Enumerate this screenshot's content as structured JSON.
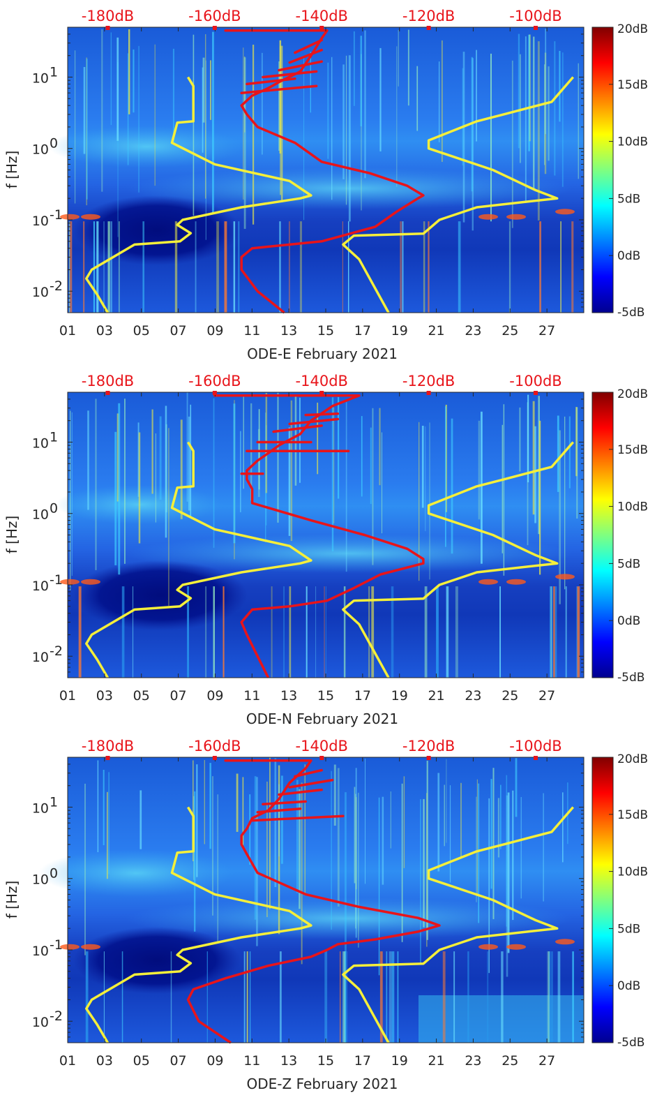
{
  "colors": {
    "background_low": "#0a1d8f",
    "background_mid": "#1f5fe0",
    "background_hi": "#35c8f0",
    "curve_red": "#e8141a",
    "curve_yellow": "#f5ef3a",
    "db_label": "#e8141a"
  },
  "chart_data": [
    {
      "type": "heatmap",
      "title": "",
      "xlabel": "ODE-E February 2021",
      "ylabel": "f [Hz]",
      "x_tick_labels": [
        "01",
        "03",
        "05",
        "07",
        "09",
        "11",
        "13",
        "15",
        "17",
        "19",
        "21",
        "23",
        "25",
        "27"
      ],
      "xlim": [
        1,
        29
      ],
      "ylim": [
        0.005,
        50
      ],
      "yscale": "log",
      "y_ticks": [
        {
          "value": 0.01,
          "base": "10",
          "exp": "-2"
        },
        {
          "value": 0.1,
          "base": "10",
          "exp": "-1"
        },
        {
          "value": 1,
          "base": "10",
          "exp": "0"
        },
        {
          "value": 10,
          "base": "10",
          "exp": "1"
        }
      ],
      "top_axis_labels": [
        "-180dB",
        "-160dB",
        "-140dB",
        "-120dB",
        "-100dB"
      ],
      "top_axis_values": [
        -180,
        -160,
        -140,
        -120,
        -100
      ],
      "top_axis_range": [
        -187.5,
        -91
      ],
      "colorbar": {
        "labels": [
          "20dB",
          "15dB",
          "10dB",
          "5dB",
          "0dB",
          "-5dB"
        ],
        "values": [
          20,
          15,
          10,
          5,
          0,
          -5
        ],
        "range": [
          -5,
          20
        ],
        "colormap": "jet"
      },
      "series": [
        {
          "name": "yellow-model-low",
          "color": "yellow",
          "points": [
            [
              -180,
              0.005
            ],
            [
              -182,
              0.009
            ],
            [
              -184,
              0.015
            ],
            [
              -183,
              0.02
            ],
            [
              -175,
              0.045
            ],
            [
              -166.5,
              0.05
            ],
            [
              -164.5,
              0.065
            ],
            [
              -167,
              0.085
            ],
            [
              -166,
              0.1
            ],
            [
              -155,
              0.15
            ],
            [
              -144,
              0.2
            ],
            [
              -142,
              0.22
            ],
            [
              -146,
              0.35
            ],
            [
              -160,
              0.6
            ],
            [
              -168,
              1.2
            ],
            [
              -167,
              2.3
            ],
            [
              -164,
              2.4
            ],
            [
              -164,
              7.5
            ],
            [
              -165,
              10
            ]
          ]
        },
        {
          "name": "yellow-model-high",
          "color": "yellow",
          "points": [
            [
              -127.5,
              0.005
            ],
            [
              -133,
              0.028
            ],
            [
              -136,
              0.045
            ],
            [
              -134,
              0.06
            ],
            [
              -121,
              0.064
            ],
            [
              -118,
              0.1
            ],
            [
              -111,
              0.15
            ],
            [
              -96,
              0.2
            ],
            [
              -100,
              0.26
            ],
            [
              -108,
              0.5
            ],
            [
              -120,
              1.0
            ],
            [
              -120,
              1.3
            ],
            [
              -111,
              2.4
            ],
            [
              -106,
              3.0
            ],
            [
              -97,
              4.5
            ],
            [
              -93,
              10
            ]
          ]
        }
      ],
      "red_main": [
        [
          -147,
          0.005
        ],
        [
          -152,
          0.01
        ],
        [
          -155,
          0.02
        ],
        [
          -155,
          0.03
        ],
        [
          -153,
          0.04
        ],
        [
          -146,
          0.045
        ],
        [
          -140,
          0.05
        ],
        [
          -130,
          0.08
        ],
        [
          -126,
          0.13
        ],
        [
          -122,
          0.2
        ],
        [
          -121,
          0.22
        ],
        [
          -124,
          0.3
        ],
        [
          -131,
          0.45
        ],
        [
          -140,
          0.65
        ],
        [
          -145,
          1.2
        ],
        [
          -152,
          2.0
        ],
        [
          -154,
          3.0
        ],
        [
          -155,
          4.0
        ],
        [
          -153,
          5.5
        ],
        [
          -150,
          7.0
        ],
        [
          -148,
          8.5
        ],
        [
          -144,
          12
        ],
        [
          -142,
          20
        ],
        [
          -140,
          35
        ],
        [
          -139,
          45
        ]
      ],
      "red_branches": [
        [
          -155,
          6.0,
          -141,
          7.5
        ],
        [
          -154,
          8.0,
          -145,
          9.5
        ],
        [
          -151,
          10,
          -141,
          12
        ],
        [
          -148,
          12.5,
          -140,
          16.5
        ],
        [
          -146,
          16,
          -140,
          24
        ],
        [
          -145,
          22,
          -140,
          33
        ],
        [
          -158,
          45,
          -139,
          45
        ]
      ]
    },
    {
      "type": "heatmap",
      "title": "",
      "xlabel": "ODE-N February 2021",
      "ylabel": "f [Hz]",
      "x_tick_labels": [
        "01",
        "03",
        "05",
        "07",
        "09",
        "11",
        "13",
        "15",
        "17",
        "19",
        "21",
        "23",
        "25",
        "27"
      ],
      "xlim": [
        1,
        29
      ],
      "ylim": [
        0.005,
        50
      ],
      "yscale": "log",
      "y_ticks": [
        {
          "value": 0.01,
          "base": "10",
          "exp": "-2"
        },
        {
          "value": 0.1,
          "base": "10",
          "exp": "-1"
        },
        {
          "value": 1,
          "base": "10",
          "exp": "0"
        },
        {
          "value": 10,
          "base": "10",
          "exp": "1"
        }
      ],
      "top_axis_labels": [
        "-180dB",
        "-160dB",
        "-140dB",
        "-120dB",
        "-100dB"
      ],
      "top_axis_values": [
        -180,
        -160,
        -140,
        -120,
        -100
      ],
      "top_axis_range": [
        -187.5,
        -91
      ],
      "colorbar": {
        "labels": [
          "20dB",
          "15dB",
          "10dB",
          "5dB",
          "0dB",
          "-5dB"
        ],
        "values": [
          20,
          15,
          10,
          5,
          0,
          -5
        ],
        "range": [
          -5,
          20
        ],
        "colormap": "jet"
      },
      "series": [
        {
          "name": "yellow-model-low",
          "color": "yellow",
          "points": [
            [
              -180,
              0.005
            ],
            [
              -182,
              0.009
            ],
            [
              -184,
              0.015
            ],
            [
              -183,
              0.02
            ],
            [
              -175,
              0.045
            ],
            [
              -166.5,
              0.05
            ],
            [
              -164.5,
              0.065
            ],
            [
              -167,
              0.085
            ],
            [
              -166,
              0.1
            ],
            [
              -155,
              0.15
            ],
            [
              -144,
              0.2
            ],
            [
              -142,
              0.22
            ],
            [
              -146,
              0.35
            ],
            [
              -160,
              0.6
            ],
            [
              -168,
              1.2
            ],
            [
              -167,
              2.3
            ],
            [
              -164,
              2.4
            ],
            [
              -164,
              7.5
            ],
            [
              -165,
              10
            ]
          ]
        },
        {
          "name": "yellow-model-high",
          "color": "yellow",
          "points": [
            [
              -127.5,
              0.005
            ],
            [
              -133,
              0.028
            ],
            [
              -136,
              0.045
            ],
            [
              -134,
              0.06
            ],
            [
              -121,
              0.064
            ],
            [
              -118,
              0.1
            ],
            [
              -111,
              0.15
            ],
            [
              -96,
              0.2
            ],
            [
              -100,
              0.26
            ],
            [
              -108,
              0.5
            ],
            [
              -120,
              1.0
            ],
            [
              -120,
              1.3
            ],
            [
              -111,
              2.4
            ],
            [
              -106,
              3.0
            ],
            [
              -97,
              4.5
            ],
            [
              -93,
              10
            ]
          ]
        }
      ],
      "red_main": [
        [
          -150,
          0.005
        ],
        [
          -152,
          0.01
        ],
        [
          -154,
          0.02
        ],
        [
          -155,
          0.03
        ],
        [
          -153,
          0.045
        ],
        [
          -146,
          0.05
        ],
        [
          -139,
          0.06
        ],
        [
          -134,
          0.09
        ],
        [
          -129,
          0.14
        ],
        [
          -121,
          0.2
        ],
        [
          -121,
          0.23
        ],
        [
          -124,
          0.32
        ],
        [
          -132,
          0.5
        ],
        [
          -142,
          0.8
        ],
        [
          -153,
          1.4
        ],
        [
          -153,
          2.2
        ],
        [
          -154,
          3.0
        ],
        [
          -154,
          4.0
        ],
        [
          -152,
          5.5
        ],
        [
          -150,
          7.0
        ],
        [
          -148,
          9.0
        ],
        [
          -144,
          13
        ],
        [
          -142,
          20
        ],
        [
          -138,
          32
        ],
        [
          -133,
          45
        ]
      ],
      "red_branches": [
        [
          -155,
          3.6,
          -151,
          3.6
        ],
        [
          -154,
          7.5,
          -135,
          7.5
        ],
        [
          -152,
          10,
          -142,
          10
        ],
        [
          -149,
          14,
          -140,
          17
        ],
        [
          -146,
          18,
          -137,
          21
        ],
        [
          -143,
          24,
          -137,
          25
        ],
        [
          -160,
          45,
          -133,
          45
        ]
      ]
    },
    {
      "type": "heatmap",
      "title": "",
      "xlabel": "ODE-Z February 2021",
      "ylabel": "f [Hz]",
      "x_tick_labels": [
        "01",
        "03",
        "05",
        "07",
        "09",
        "11",
        "13",
        "15",
        "17",
        "19",
        "21",
        "23",
        "25",
        "27"
      ],
      "xlim": [
        1,
        29
      ],
      "ylim": [
        0.005,
        50
      ],
      "yscale": "log",
      "y_ticks": [
        {
          "value": 0.01,
          "base": "10",
          "exp": "-2"
        },
        {
          "value": 0.1,
          "base": "10",
          "exp": "-1"
        },
        {
          "value": 1,
          "base": "10",
          "exp": "0"
        },
        {
          "value": 10,
          "base": "10",
          "exp": "1"
        }
      ],
      "top_axis_labels": [
        "-180dB",
        "-160dB",
        "-140dB",
        "-120dB",
        "-100dB"
      ],
      "top_axis_values": [
        -180,
        -160,
        -140,
        -120,
        -100
      ],
      "top_axis_range": [
        -187.5,
        -91
      ],
      "colorbar": {
        "labels": [
          "20dB",
          "15dB",
          "10dB",
          "5dB",
          "0dB",
          "-5dB"
        ],
        "values": [
          20,
          15,
          10,
          5,
          0,
          -5
        ],
        "range": [
          -5,
          20
        ],
        "colormap": "jet"
      },
      "series": [
        {
          "name": "yellow-model-low",
          "color": "yellow",
          "points": [
            [
              -180,
              0.005
            ],
            [
              -182,
              0.009
            ],
            [
              -184,
              0.015
            ],
            [
              -183,
              0.02
            ],
            [
              -175,
              0.045
            ],
            [
              -166.5,
              0.05
            ],
            [
              -164.5,
              0.065
            ],
            [
              -167,
              0.085
            ],
            [
              -166,
              0.1
            ],
            [
              -155,
              0.15
            ],
            [
              -144,
              0.2
            ],
            [
              -142,
              0.22
            ],
            [
              -146,
              0.35
            ],
            [
              -160,
              0.6
            ],
            [
              -168,
              1.2
            ],
            [
              -167,
              2.3
            ],
            [
              -164,
              2.4
            ],
            [
              -164,
              7.5
            ],
            [
              -165,
              10
            ]
          ]
        },
        {
          "name": "yellow-model-high",
          "color": "yellow",
          "points": [
            [
              -127.5,
              0.005
            ],
            [
              -133,
              0.028
            ],
            [
              -136,
              0.045
            ],
            [
              -134,
              0.06
            ],
            [
              -121,
              0.064
            ],
            [
              -118,
              0.1
            ],
            [
              -111,
              0.15
            ],
            [
              -96,
              0.2
            ],
            [
              -100,
              0.26
            ],
            [
              -108,
              0.5
            ],
            [
              -120,
              1.0
            ],
            [
              -120,
              1.3
            ],
            [
              -111,
              2.4
            ],
            [
              -106,
              3.0
            ],
            [
              -97,
              4.5
            ],
            [
              -93,
              10
            ]
          ]
        }
      ],
      "red_main": [
        [
          -157,
          0.005
        ],
        [
          -163,
          0.01
        ],
        [
          -165,
          0.02
        ],
        [
          -164,
          0.028
        ],
        [
          -158,
          0.04
        ],
        [
          -150,
          0.06
        ],
        [
          -142,
          0.08
        ],
        [
          -139,
          0.1
        ],
        [
          -137,
          0.12
        ],
        [
          -130,
          0.14
        ],
        [
          -122,
          0.18
        ],
        [
          -118,
          0.22
        ],
        [
          -122,
          0.28
        ],
        [
          -133,
          0.4
        ],
        [
          -143,
          0.6
        ],
        [
          -152,
          1.2
        ],
        [
          -154,
          2.2
        ],
        [
          -155,
          3.0
        ],
        [
          -155,
          4.0
        ],
        [
          -154,
          5.0
        ],
        [
          -153,
          7.0
        ],
        [
          -150,
          9.0
        ],
        [
          -148,
          13
        ],
        [
          -146,
          22
        ],
        [
          -143,
          35
        ],
        [
          -142,
          45
        ]
      ],
      "red_branches": [
        [
          -153,
          6.5,
          -136,
          7.5
        ],
        [
          -152,
          8.5,
          -144,
          9.5
        ],
        [
          -151,
          11,
          -143,
          12
        ],
        [
          -148,
          15,
          -140,
          17.5
        ],
        [
          -146,
          19,
          -138,
          24
        ],
        [
          -145,
          27,
          -140,
          33
        ],
        [
          -158,
          45,
          -142,
          45
        ]
      ]
    }
  ]
}
